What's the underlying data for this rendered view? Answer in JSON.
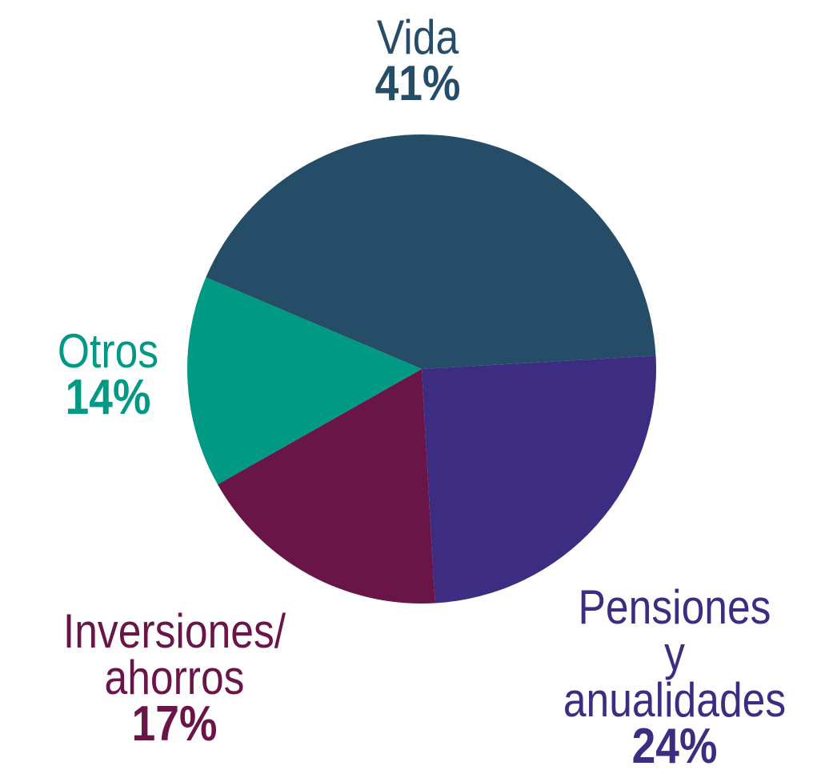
{
  "chart_data": {
    "type": "pie",
    "categories": [
      "Vida",
      "Pensiones y\nanualidades",
      "Inversiones/\nahorros",
      "Otros"
    ],
    "values": [
      41,
      24,
      17,
      14
    ],
    "value_labels": [
      "41%",
      "24%",
      "17%",
      "14%"
    ],
    "colors": [
      "#264d67",
      "#3c2c82",
      "#6a1548",
      "#009a84"
    ]
  }
}
